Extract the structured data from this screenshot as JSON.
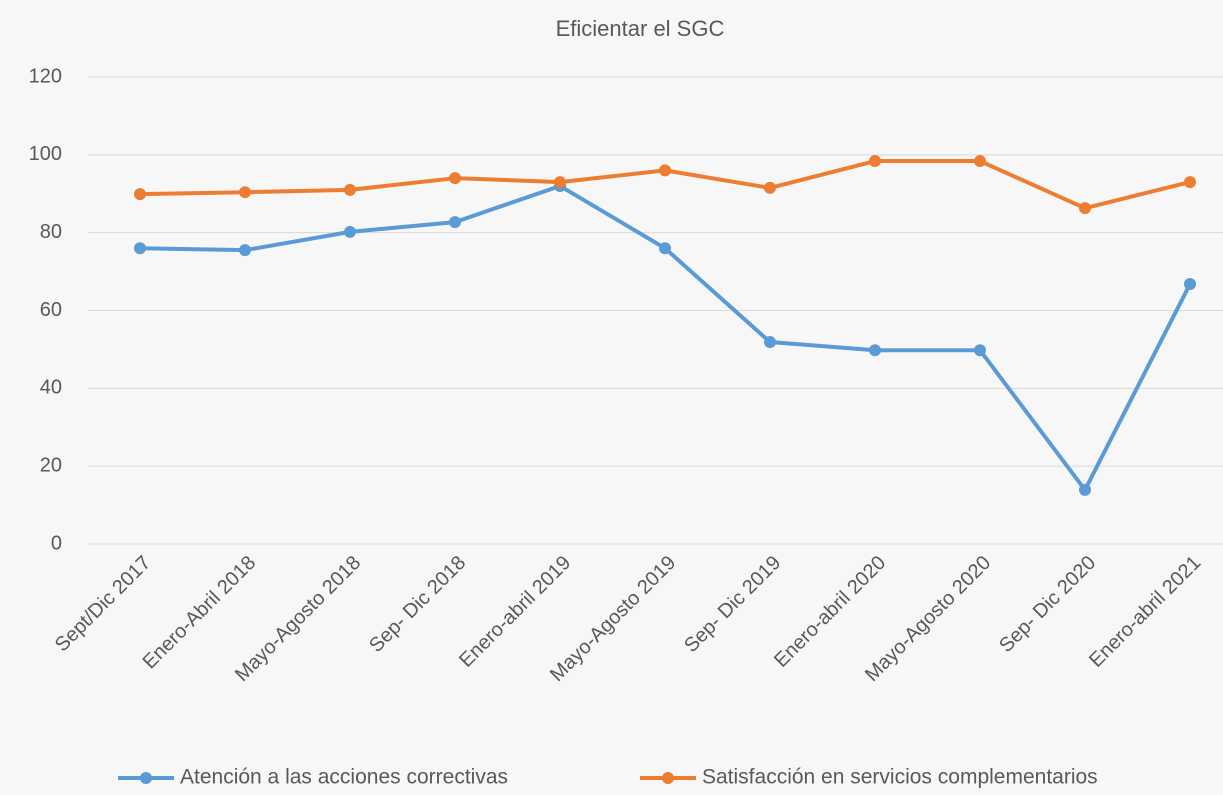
{
  "chart_data": {
    "type": "line",
    "title": "Eficientar el SGC",
    "categories": [
      "Sept/Dic 2017",
      "Enero-Abril 2018",
      "Mayo-Agosto 2018",
      "Sep- Dic 2018",
      "Enero-abril 2019",
      "Mayo-Agosto 2019",
      "Sep- Dic 2019",
      "Enero-abril 2020",
      "Mayo-Agosto 2020",
      "Sep- Dic 2020",
      "Enero-abril 2021"
    ],
    "series": [
      {
        "name": "Atención a las acciones correctivas",
        "color": "#5b9bd5",
        "values": [
          76,
          75.5,
          80.2,
          82.7,
          92,
          76,
          51.9,
          49.8,
          49.8,
          13.9,
          66.8
        ]
      },
      {
        "name": "Satisfacción en servicios complementarios",
        "color": "#ed7d31",
        "values": [
          89.9,
          90.4,
          91,
          94,
          93,
          96,
          91.5,
          98.4,
          98.4,
          86.3,
          93
        ]
      }
    ],
    "ylim": [
      0,
      120
    ],
    "yticks": [
      0,
      20,
      40,
      60,
      80,
      100,
      120
    ],
    "grid": true,
    "legend": "bottom"
  }
}
